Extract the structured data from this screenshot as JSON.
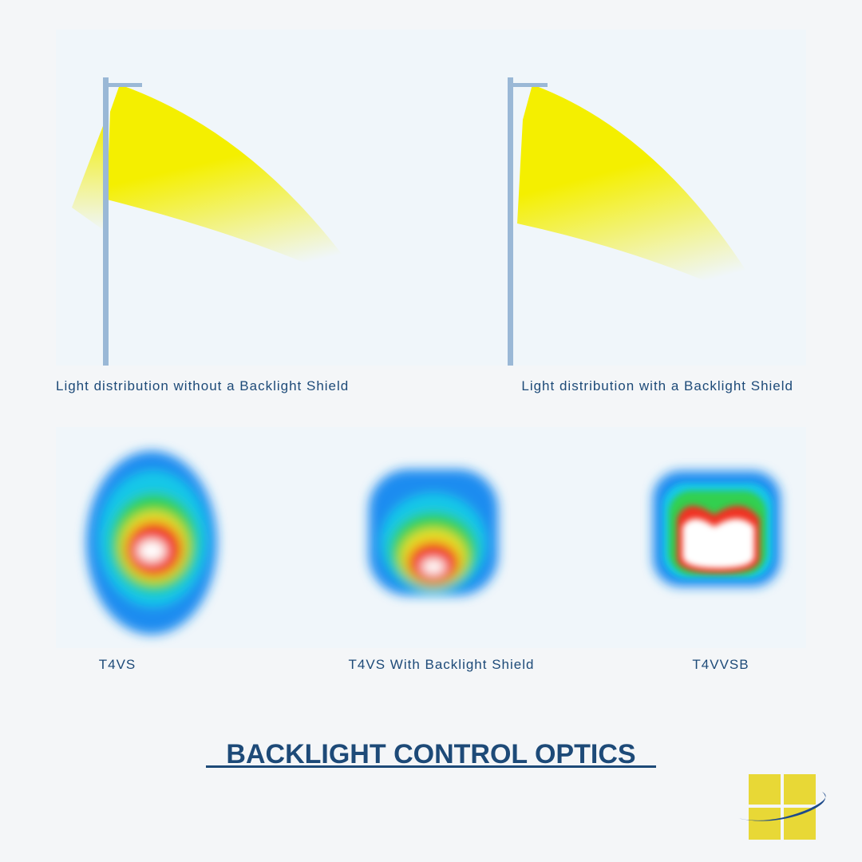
{
  "top_panel": {
    "captions": [
      "Light distribution without a Backlight Shield",
      "Light distribution with a Backlight Shield"
    ]
  },
  "bottom_panel": {
    "labels": [
      "T4VS",
      "T4VS With Backlight Shield",
      "T4VVSB"
    ]
  },
  "title": "BACKLIGHT CONTROL OPTICS"
}
